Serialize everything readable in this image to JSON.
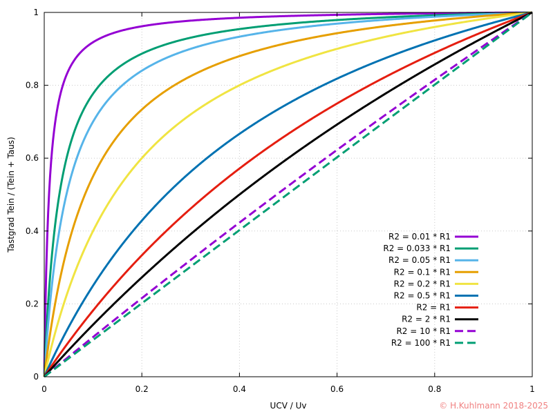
{
  "chart_data": {
    "type": "line",
    "title": "",
    "xlabel": "UCV / Uv",
    "ylabel": "Tastgrad Tein / (Tein + Taus)",
    "xlim": [
      0,
      1
    ],
    "ylim": [
      0,
      1
    ],
    "xticks": [
      "0",
      "0.2",
      "0.4",
      "0.6",
      "0.8",
      "1"
    ],
    "yticks": [
      "0",
      "0.2",
      "0.4",
      "0.6",
      "0.8",
      "1"
    ],
    "grid": true,
    "legend_position": "bottom-right",
    "model": "y = x(1+r) / (x + r), r = R2/R1; dashed curves approach y = x",
    "series": [
      {
        "name": "R2 = 0.01 * R1",
        "r": 0.01,
        "color": "#9400d3",
        "dash": false,
        "x": [
          0,
          0.05,
          0.1,
          0.2,
          0.5,
          0.8,
          1
        ],
        "y": [
          0,
          0.84,
          0.92,
          0.96,
          0.99,
          1.0,
          1
        ]
      },
      {
        "name": "R2 = 0.033 * R1",
        "r": 0.033,
        "color": "#009e73",
        "dash": false,
        "x": [
          0,
          0.05,
          0.1,
          0.2,
          0.5,
          0.8,
          1
        ],
        "y": [
          0,
          0.62,
          0.78,
          0.89,
          0.97,
          0.99,
          1
        ]
      },
      {
        "name": "R2 = 0.05 * R1",
        "r": 0.05,
        "color": "#56b4e9",
        "dash": false,
        "x": [
          0,
          0.05,
          0.1,
          0.2,
          0.5,
          0.8,
          1
        ],
        "y": [
          0,
          0.53,
          0.7,
          0.84,
          0.95,
          0.99,
          1
        ]
      },
      {
        "name": "R2 = 0.1 * R1",
        "r": 0.1,
        "color": "#e69f00",
        "dash": false,
        "x": [
          0,
          0.05,
          0.1,
          0.2,
          0.5,
          0.8,
          1
        ],
        "y": [
          0,
          0.37,
          0.55,
          0.73,
          0.92,
          0.98,
          1
        ]
      },
      {
        "name": "R2 = 0.2 * R1",
        "r": 0.2,
        "color": "#f0e442",
        "dash": false,
        "x": [
          0,
          0.05,
          0.1,
          0.2,
          0.5,
          0.8,
          1
        ],
        "y": [
          0,
          0.24,
          0.4,
          0.6,
          0.86,
          0.96,
          1
        ]
      },
      {
        "name": "R2 = 0.5 * R1",
        "r": 0.5,
        "color": "#0072b2",
        "dash": false,
        "x": [
          0,
          0.1,
          0.2,
          0.4,
          0.6,
          0.8,
          1
        ],
        "y": [
          0,
          0.25,
          0.43,
          0.67,
          0.82,
          0.92,
          1
        ]
      },
      {
        "name": "R2 = R1",
        "r": 1,
        "color": "#e51e10",
        "dash": false,
        "x": [
          0,
          0.1,
          0.2,
          0.4,
          0.6,
          0.8,
          1
        ],
        "y": [
          0,
          0.18,
          0.33,
          0.57,
          0.75,
          0.89,
          1
        ]
      },
      {
        "name": "R2 = 2 * R1",
        "r": 2,
        "color": "#000000",
        "dash": false,
        "x": [
          0,
          0.1,
          0.2,
          0.4,
          0.6,
          0.8,
          1
        ],
        "y": [
          0,
          0.14,
          0.27,
          0.5,
          0.69,
          0.86,
          1
        ]
      },
      {
        "name": "R2 = 10 * R1",
        "r": 10,
        "color": "#9400d3",
        "dash": true,
        "x": [
          0,
          0.1,
          0.2,
          0.4,
          0.6,
          0.8,
          1
        ],
        "y": [
          0,
          0.11,
          0.22,
          0.42,
          0.62,
          0.81,
          1
        ]
      },
      {
        "name": "R2 = 100 * R1",
        "r": 100,
        "color": "#009e73",
        "dash": true,
        "x": [
          0,
          0.1,
          0.2,
          0.4,
          0.6,
          0.8,
          1
        ],
        "y": [
          0,
          0.1,
          0.2,
          0.4,
          0.6,
          0.8,
          1
        ]
      }
    ]
  },
  "copyright": "© H.Kuhlmann 2018-2025",
  "colors": {
    "copyright": "#f08080",
    "grid": "#c8c8c8",
    "frame": "#000000"
  }
}
